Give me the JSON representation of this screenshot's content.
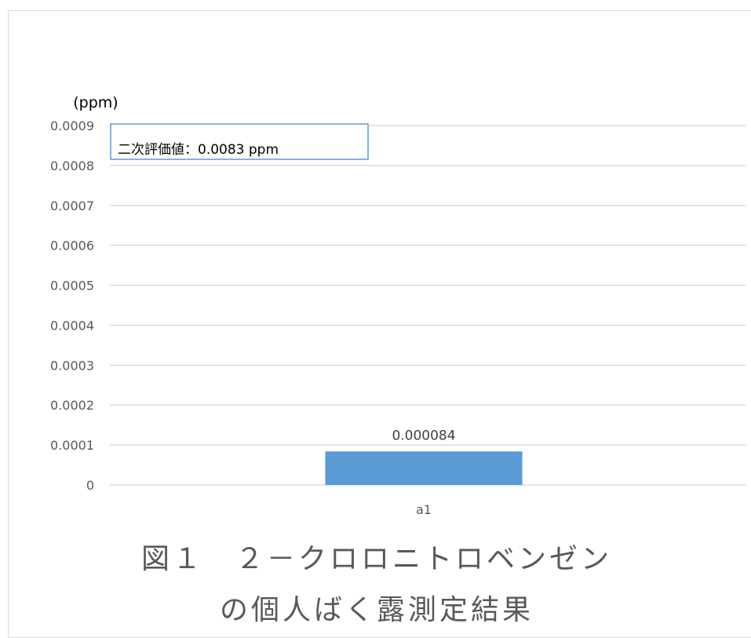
{
  "chart_data": {
    "type": "bar",
    "categories": [
      "a1"
    ],
    "values": [
      8.4e-05
    ],
    "data_labels": [
      "0.000084"
    ],
    "ylabel": "(ppm)",
    "ylim": [
      0,
      0.0009
    ],
    "yticks": [
      "0",
      "0.0001",
      "0.0002",
      "0.0003",
      "0.0004",
      "0.0005",
      "0.0006",
      "0.0007",
      "0.0008",
      "0.0009"
    ],
    "grid": true,
    "bar_color": "#5b9bd5",
    "annotation": "二次評価値：0.0083 ppm",
    "annotation_border_color": "#5b9bd5"
  },
  "caption": {
    "line1": "図１　２－クロロニトロベンゼン",
    "line2": "の個人ばく露測定結果"
  }
}
